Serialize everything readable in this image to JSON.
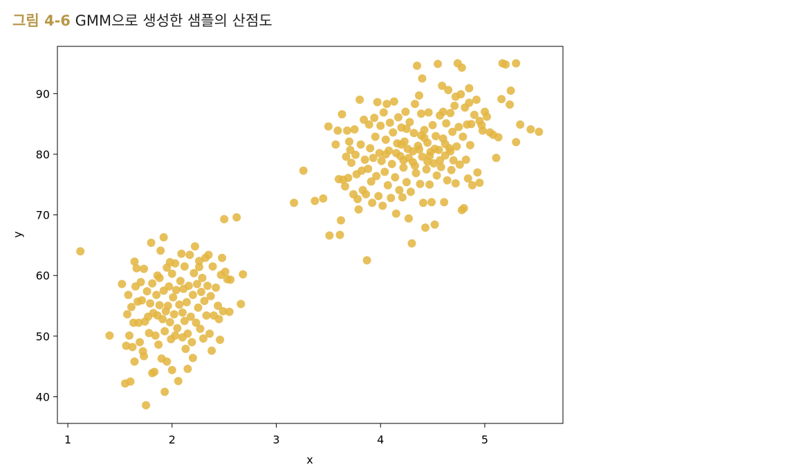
{
  "caption": {
    "label": "그림 4-6",
    "title": "GMM으로 생성한 샘플의 산점도"
  },
  "colors": {
    "caption_label": "#b8974a",
    "points": "#e3b53f",
    "axes": "#000000"
  },
  "chart_data": {
    "type": "scatter",
    "title": "",
    "xlabel": "x",
    "ylabel": "y",
    "xlim": [
      0.9,
      5.75
    ],
    "ylim": [
      35.6,
      97.8
    ],
    "xticks": [
      1,
      2,
      3,
      4,
      5
    ],
    "yticks": [
      40,
      50,
      60,
      70,
      80,
      90
    ],
    "grid": false,
    "legend": "none",
    "series": [
      {
        "points": [
          [
            1.12,
            64.0
          ],
          [
            1.4,
            50.1
          ],
          [
            1.52,
            58.6
          ],
          [
            1.55,
            42.2
          ],
          [
            1.56,
            48.4
          ],
          [
            1.57,
            53.6
          ],
          [
            1.58,
            56.8
          ],
          [
            1.59,
            50.1
          ],
          [
            1.6,
            42.5
          ],
          [
            1.61,
            54.8
          ],
          [
            1.62,
            48.2
          ],
          [
            1.63,
            52.2
          ],
          [
            1.64,
            62.3
          ],
          [
            1.64,
            45.8
          ],
          [
            1.65,
            58.2
          ],
          [
            1.66,
            61.2
          ],
          [
            1.67,
            55.7
          ],
          [
            1.68,
            52.2
          ],
          [
            1.69,
            49.0
          ],
          [
            1.7,
            58.9
          ],
          [
            1.71,
            55.9
          ],
          [
            1.72,
            47.5
          ],
          [
            1.73,
            61.1
          ],
          [
            1.73,
            46.7
          ],
          [
            1.74,
            52.4
          ],
          [
            1.75,
            38.6
          ],
          [
            1.76,
            57.4
          ],
          [
            1.77,
            53.2
          ],
          [
            1.78,
            50.5
          ],
          [
            1.79,
            55.4
          ],
          [
            1.8,
            65.4
          ],
          [
            1.81,
            43.9
          ],
          [
            1.81,
            58.7
          ],
          [
            1.82,
            53.8
          ],
          [
            1.83,
            44.1
          ],
          [
            1.84,
            50.1
          ],
          [
            1.85,
            56.8
          ],
          [
            1.86,
            60.0
          ],
          [
            1.86,
            53.4
          ],
          [
            1.87,
            48.6
          ],
          [
            1.88,
            55.1
          ],
          [
            1.89,
            64.1
          ],
          [
            1.9,
            46.3
          ],
          [
            1.91,
            52.8
          ],
          [
            1.92,
            66.3
          ],
          [
            1.92,
            57.5
          ],
          [
            1.93,
            40.8
          ],
          [
            1.93,
            50.8
          ],
          [
            1.94,
            54.1
          ],
          [
            1.95,
            61.3
          ],
          [
            1.95,
            45.8
          ],
          [
            1.96,
            55.0
          ],
          [
            1.97,
            58.2
          ],
          [
            1.98,
            52.3
          ],
          [
            1.99,
            49.5
          ],
          [
            2.0,
            60.3
          ],
          [
            2.0,
            44.4
          ],
          [
            2.01,
            56.4
          ],
          [
            2.02,
            53.6
          ],
          [
            2.03,
            62.0
          ],
          [
            2.04,
            57.6
          ],
          [
            2.05,
            51.3
          ],
          [
            2.06,
            42.6
          ],
          [
            2.07,
            55.2
          ],
          [
            2.08,
            59.1
          ],
          [
            2.09,
            63.6
          ],
          [
            2.1,
            49.8
          ],
          [
            2.1,
            53.9
          ],
          [
            2.11,
            57.8
          ],
          [
            2.12,
            61.5
          ],
          [
            2.13,
            47.9
          ],
          [
            2.14,
            55.6
          ],
          [
            2.15,
            44.6
          ],
          [
            2.15,
            50.4
          ],
          [
            2.16,
            58.3
          ],
          [
            2.17,
            63.4
          ],
          [
            2.18,
            53.2
          ],
          [
            2.19,
            49.0
          ],
          [
            2.2,
            46.4
          ],
          [
            2.2,
            56.8
          ],
          [
            2.21,
            60.4
          ],
          [
            2.22,
            64.8
          ],
          [
            2.23,
            52.2
          ],
          [
            2.24,
            58.6
          ],
          [
            2.25,
            54.7
          ],
          [
            2.26,
            61.4
          ],
          [
            2.27,
            51.2
          ],
          [
            2.28,
            57.3
          ],
          [
            2.29,
            59.6
          ],
          [
            2.3,
            49.6
          ],
          [
            2.31,
            55.8
          ],
          [
            2.32,
            62.9
          ],
          [
            2.33,
            53.4
          ],
          [
            2.34,
            58.3
          ],
          [
            2.35,
            63.4
          ],
          [
            2.36,
            50.4
          ],
          [
            2.37,
            56.6
          ],
          [
            2.38,
            47.6
          ],
          [
            2.39,
            61.5
          ],
          [
            2.4,
            53.4
          ],
          [
            2.42,
            58.0
          ],
          [
            2.44,
            55.0
          ],
          [
            2.45,
            52.8
          ],
          [
            2.46,
            49.4
          ],
          [
            2.47,
            60.1
          ],
          [
            2.48,
            62.9
          ],
          [
            2.49,
            54.1
          ],
          [
            2.5,
            69.3
          ],
          [
            2.51,
            60.6
          ],
          [
            2.53,
            59.4
          ],
          [
            2.55,
            54.0
          ],
          [
            2.56,
            59.3
          ],
          [
            2.62,
            69.6
          ],
          [
            2.66,
            55.3
          ],
          [
            2.68,
            60.2
          ],
          [
            1.98,
            62.2
          ],
          [
            2.26,
            62.4
          ],
          [
            2.03,
            50.1
          ],
          [
            1.88,
            59.6
          ],
          [
            2.12,
            52.5
          ],
          [
            3.17,
            72.0
          ],
          [
            3.26,
            77.3
          ],
          [
            3.37,
            72.3
          ],
          [
            3.45,
            72.7
          ],
          [
            3.5,
            84.6
          ],
          [
            3.51,
            66.6
          ],
          [
            3.57,
            81.6
          ],
          [
            3.59,
            83.9
          ],
          [
            3.6,
            75.9
          ],
          [
            3.61,
            66.7
          ],
          [
            3.62,
            69.1
          ],
          [
            3.63,
            86.6
          ],
          [
            3.64,
            75.8
          ],
          [
            3.66,
            74.7
          ],
          [
            3.67,
            79.6
          ],
          [
            3.68,
            83.9
          ],
          [
            3.69,
            76.1
          ],
          [
            3.7,
            82.1
          ],
          [
            3.71,
            80.7
          ],
          [
            3.72,
            78.6
          ],
          [
            3.74,
            73.4
          ],
          [
            3.75,
            84.1
          ],
          [
            3.76,
            79.9
          ],
          [
            3.77,
            76.7
          ],
          [
            3.78,
            72.6
          ],
          [
            3.79,
            70.9
          ],
          [
            3.8,
            89.0
          ],
          [
            3.81,
            81.6
          ],
          [
            3.82,
            77.3
          ],
          [
            3.83,
            74.1
          ],
          [
            3.84,
            85.7
          ],
          [
            3.85,
            79.1
          ],
          [
            3.86,
            73.4
          ],
          [
            3.87,
            62.5
          ],
          [
            3.88,
            77.6
          ],
          [
            3.89,
            84.9
          ],
          [
            3.9,
            81.0
          ],
          [
            3.91,
            75.5
          ],
          [
            3.92,
            72.0
          ],
          [
            3.93,
            79.4
          ],
          [
            3.94,
            86.0
          ],
          [
            3.95,
            82.9
          ],
          [
            3.96,
            76.4
          ],
          [
            3.97,
            88.6
          ],
          [
            3.98,
            73.1
          ],
          [
            3.99,
            80.2
          ],
          [
            4.0,
            84.7
          ],
          [
            4.01,
            78.9
          ],
          [
            4.02,
            71.5
          ],
          [
            4.03,
            86.9
          ],
          [
            4.04,
            77.1
          ],
          [
            4.05,
            82.4
          ],
          [
            4.06,
            88.3
          ],
          [
            4.07,
            74.9
          ],
          [
            4.08,
            80.6
          ],
          [
            4.09,
            85.2
          ],
          [
            4.1,
            72.8
          ],
          [
            4.11,
            78.4
          ],
          [
            4.12,
            83.6
          ],
          [
            4.13,
            88.7
          ],
          [
            4.14,
            76.2
          ],
          [
            4.15,
            70.2
          ],
          [
            4.16,
            81.8
          ],
          [
            4.17,
            86.1
          ],
          [
            4.18,
            74.1
          ],
          [
            4.19,
            79.7
          ],
          [
            4.2,
            84.4
          ],
          [
            4.21,
            72.9
          ],
          [
            4.22,
            77.8
          ],
          [
            4.23,
            82.1
          ],
          [
            4.24,
            87.0
          ],
          [
            4.25,
            75.4
          ],
          [
            4.26,
            80.9
          ],
          [
            4.27,
            69.4
          ],
          [
            4.28,
            85.3
          ],
          [
            4.29,
            73.8
          ],
          [
            4.3,
            65.3
          ],
          [
            4.31,
            78.7
          ],
          [
            4.32,
            83.5
          ],
          [
            4.33,
            88.3
          ],
          [
            4.34,
            76.9
          ],
          [
            4.35,
            94.6
          ],
          [
            4.36,
            81.4
          ],
          [
            4.37,
            89.7
          ],
          [
            4.38,
            75.1
          ],
          [
            4.39,
            86.7
          ],
          [
            4.4,
            79.6
          ],
          [
            4.41,
            72.0
          ],
          [
            4.42,
            84.0
          ],
          [
            4.43,
            67.9
          ],
          [
            4.44,
            77.5
          ],
          [
            4.45,
            81.9
          ],
          [
            4.46,
            86.9
          ],
          [
            4.47,
            75.0
          ],
          [
            4.48,
            80.4
          ],
          [
            4.49,
            72.1
          ],
          [
            4.5,
            84.8
          ],
          [
            4.51,
            78.5
          ],
          [
            4.52,
            68.4
          ],
          [
            4.53,
            83.0
          ],
          [
            4.54,
            76.5
          ],
          [
            4.55,
            94.9
          ],
          [
            4.56,
            80.7
          ],
          [
            4.57,
            86.4
          ],
          [
            4.58,
            77.9
          ],
          [
            4.59,
            91.3
          ],
          [
            4.6,
            82.6
          ],
          [
            4.61,
            72.1
          ],
          [
            4.62,
            79.8
          ],
          [
            4.63,
            85.1
          ],
          [
            4.64,
            75.7
          ],
          [
            4.65,
            90.6
          ],
          [
            4.66,
            81.0
          ],
          [
            4.67,
            86.8
          ],
          [
            4.68,
            77.4
          ],
          [
            4.69,
            83.7
          ],
          [
            4.7,
            79.0
          ],
          [
            4.71,
            88.0
          ],
          [
            4.72,
            75.2
          ],
          [
            4.73,
            81.3
          ],
          [
            4.74,
            95.0
          ],
          [
            4.75,
            84.5
          ],
          [
            4.76,
            78.3
          ],
          [
            4.77,
            89.9
          ],
          [
            4.78,
            70.8
          ],
          [
            4.79,
            82.9
          ],
          [
            4.8,
            71.1
          ],
          [
            4.81,
            87.7
          ],
          [
            4.82,
            79.1
          ],
          [
            4.83,
            84.9
          ],
          [
            4.84,
            76.0
          ],
          [
            4.85,
            90.9
          ],
          [
            4.86,
            81.5
          ],
          [
            4.87,
            85.0
          ],
          [
            4.88,
            74.9
          ],
          [
            4.9,
            86.5
          ],
          [
            4.92,
            89.0
          ],
          [
            4.93,
            77.0
          ],
          [
            4.95,
            75.3
          ],
          [
            4.97,
            84.8
          ],
          [
            4.98,
            83.9
          ],
          [
            5.0,
            87.0
          ],
          [
            5.02,
            86.2
          ],
          [
            5.05,
            83.6
          ],
          [
            5.08,
            83.2
          ],
          [
            5.11,
            79.4
          ],
          [
            5.13,
            82.8
          ],
          [
            5.16,
            89.1
          ],
          [
            5.17,
            95.0
          ],
          [
            5.2,
            94.8
          ],
          [
            5.24,
            88.2
          ],
          [
            5.25,
            90.5
          ],
          [
            5.3,
            95.0
          ],
          [
            5.3,
            82.0
          ],
          [
            5.34,
            84.9
          ],
          [
            5.44,
            84.1
          ],
          [
            5.52,
            83.7
          ],
          [
            4.78,
            94.3
          ],
          [
            4.4,
            92.5
          ],
          [
            4.72,
            89.5
          ],
          [
            4.85,
            88.5
          ],
          [
            4.95,
            85.5
          ],
          [
            4.6,
            87.0
          ],
          [
            4.25,
            84.2
          ],
          [
            4.05,
            80.0
          ],
          [
            4.15,
            80.2
          ],
          [
            4.2,
            81.6
          ],
          [
            4.27,
            79.4
          ],
          [
            4.33,
            78.1
          ],
          [
            4.37,
            80.8
          ],
          [
            4.42,
            82.7
          ],
          [
            4.47,
            79.7
          ],
          [
            4.52,
            80.9
          ],
          [
            4.57,
            79.0
          ],
          [
            4.62,
            81.7
          ],
          [
            4.67,
            80.5
          ],
          [
            4.22,
            79.0
          ],
          [
            4.31,
            80.5
          ],
          [
            4.39,
            83.1
          ],
          [
            4.45,
            78.8
          ]
        ]
      }
    ]
  }
}
